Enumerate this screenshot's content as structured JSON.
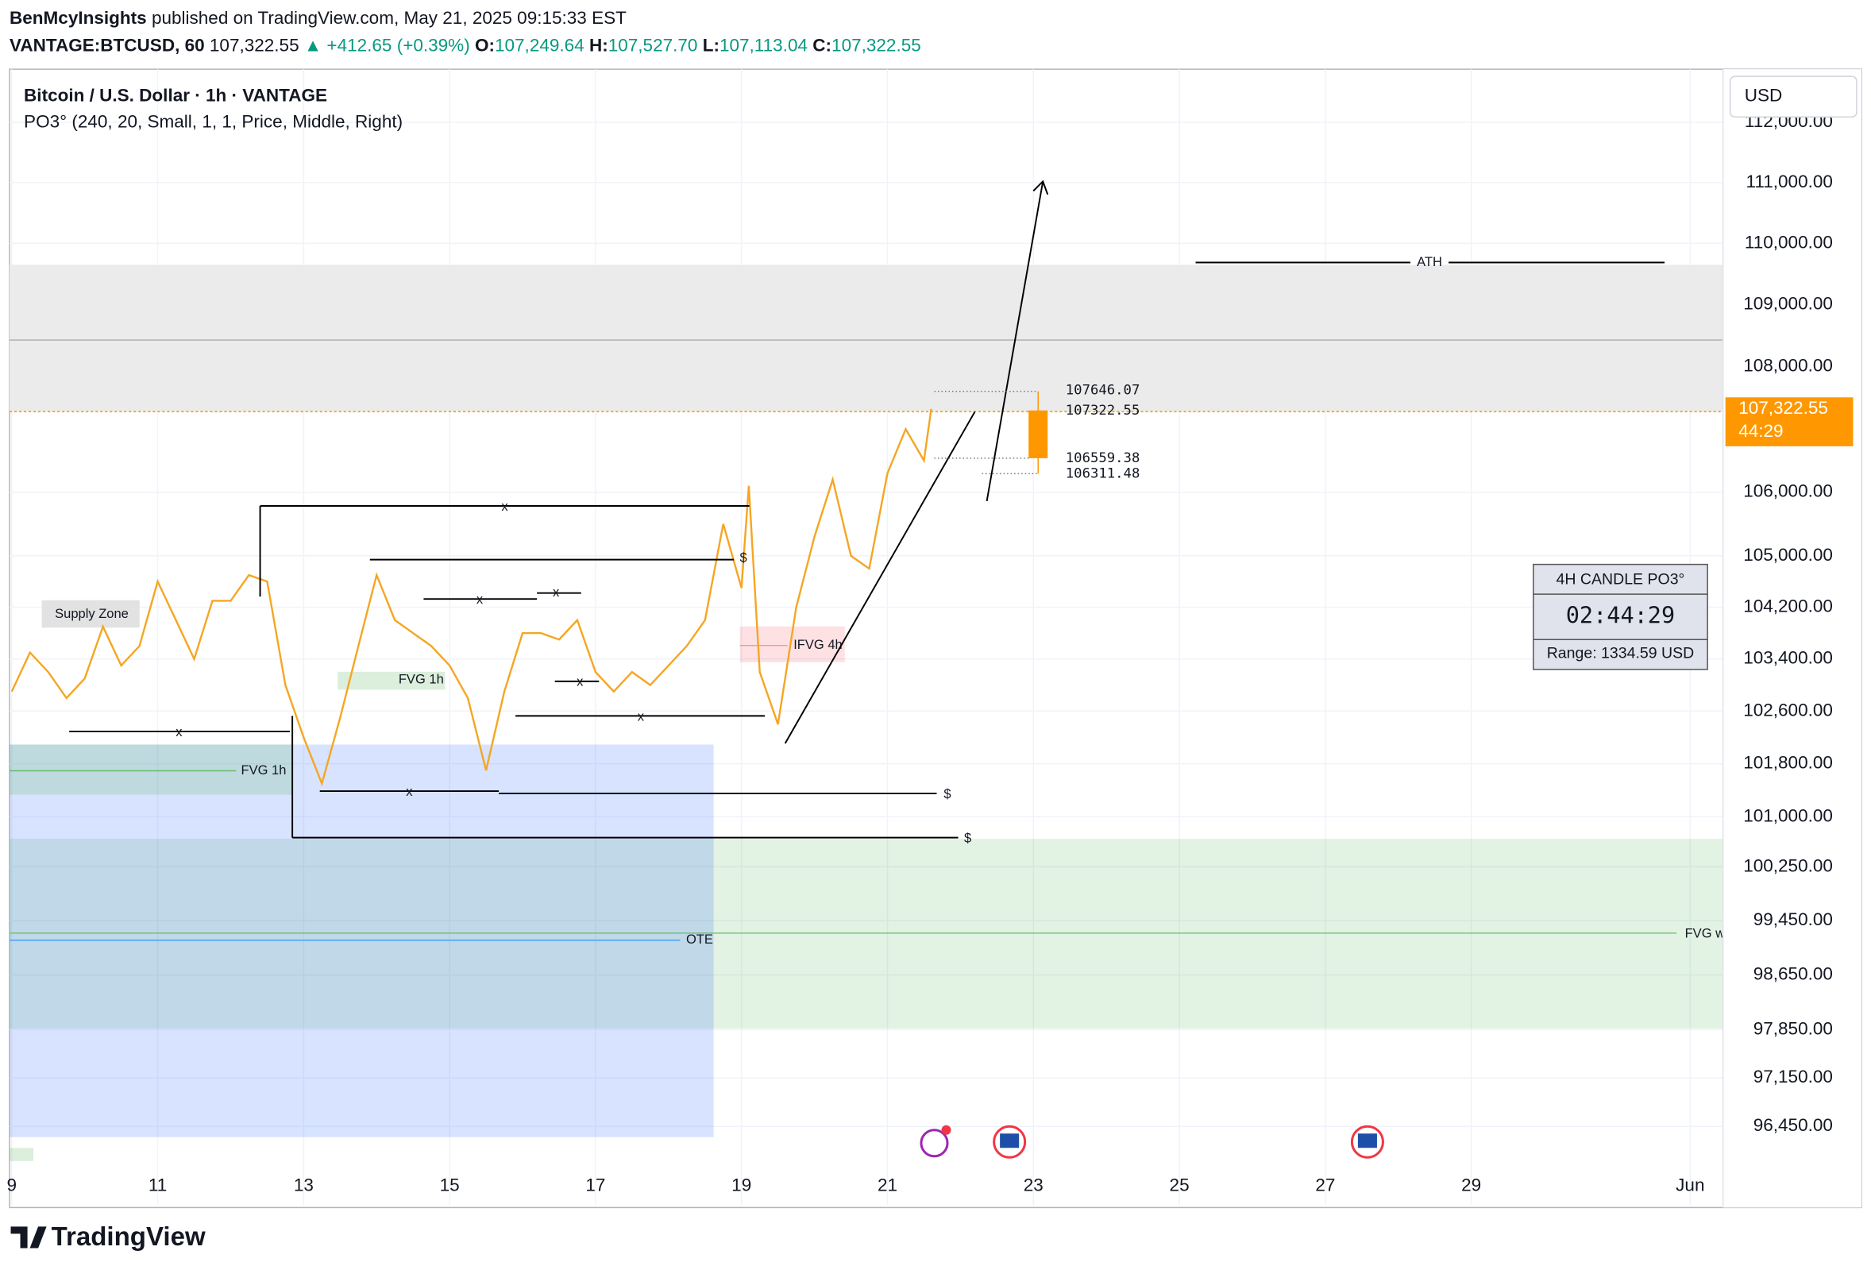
{
  "header": {
    "publisher": "BenMcyInsights",
    "published": "published on TradingView.com, May 21, 2025 09:15:33 EST",
    "symbol": "VANTAGE:BTCUSD, 60",
    "last": "107,322.55",
    "change": "▲ +412.65 (+0.39%)",
    "o_label": "O:",
    "o": "107,249.64",
    "h_label": "H:",
    "h": "107,527.70",
    "l_label": "L:",
    "l": "107,113.04",
    "c_label": "C:",
    "c": "107,322.55"
  },
  "chart_data": {
    "type": "line",
    "title": "Bitcoin / U.S. Dollar · 1h · VANTAGE",
    "subtitle": "PO3° (240, 20, Small, 1, 1, Price, Middle, Right)",
    "color": "#f5a623",
    "x": [
      9,
      9.25,
      9.5,
      9.75,
      10,
      10.25,
      10.5,
      10.75,
      11,
      11.25,
      11.5,
      11.75,
      12,
      12.25,
      12.5,
      12.75,
      13,
      13.25,
      13.5,
      13.75,
      14,
      14.25,
      14.5,
      14.75,
      15,
      15.25,
      15.5,
      15.75,
      16,
      16.25,
      16.5,
      16.75,
      17,
      17.25,
      17.5,
      17.75,
      18,
      18.25,
      18.5,
      18.75,
      19,
      19.1,
      19.25,
      19.5,
      19.75,
      20,
      20.25,
      20.5,
      20.75,
      21,
      21.25,
      21.5,
      21.6
    ],
    "values": [
      102900,
      103500,
      103200,
      102800,
      103100,
      103900,
      103300,
      103600,
      104600,
      104000,
      103400,
      104300,
      104300,
      104700,
      104600,
      103000,
      102200,
      101500,
      102500,
      103600,
      104700,
      104000,
      103800,
      103600,
      103300,
      102800,
      101700,
      102900,
      103800,
      103800,
      103700,
      104000,
      103200,
      102900,
      103200,
      103000,
      103300,
      103600,
      104000,
      105500,
      104500,
      106100,
      103200,
      102400,
      104200,
      105300,
      106200,
      105000,
      104800,
      106300,
      107000,
      106500,
      107322.55
    ],
    "log_scale": true,
    "grid": true,
    "xlim": [
      8.97,
      32.45
    ],
    "ylim": [
      95326,
      112849
    ],
    "xticks": [
      9,
      11,
      13,
      15,
      17,
      19,
      21,
      23,
      25,
      27,
      29,
      {
        "value": 32,
        "label": "Jun"
      }
    ],
    "yticks": [
      {
        "value": 112000,
        "label": "112,000.00"
      },
      {
        "value": 111000,
        "label": "111,000.00"
      },
      {
        "value": 110000,
        "label": "110,000.00"
      },
      {
        "value": 109000,
        "label": "109,000.00"
      },
      {
        "value": 108000,
        "label": "108,000.00"
      },
      {
        "value": 106000,
        "label": "106,000.00"
      },
      {
        "value": 105000,
        "label": "105,000.00"
      },
      {
        "value": 104200,
        "label": "104,200.00"
      },
      {
        "value": 103400,
        "label": "103,400.00"
      },
      {
        "value": 102600,
        "label": "102,600.00"
      },
      {
        "value": 101800,
        "label": "101,800.00"
      },
      {
        "value": 101000,
        "label": "101,000.00"
      },
      {
        "value": 100250,
        "label": "100,250.00"
      },
      {
        "value": 99450,
        "label": "99,450.00"
      },
      {
        "value": 98650,
        "label": "98,650.00"
      },
      {
        "value": 97850,
        "label": "97,850.00"
      },
      {
        "value": 97150,
        "label": "97,150.00"
      },
      {
        "value": 96450,
        "label": "96,450.00"
      }
    ]
  },
  "currency": "USD",
  "price_label": {
    "price": "107,322.55",
    "countdown": "44:29"
  },
  "annotations": {
    "supply_zone": "Supply Zone",
    "fvg_1h_a": "FVG 1h",
    "fvg_1h_b": "FVG 1h",
    "ifvg": "IFVG 4h",
    "ote": "OTE",
    "fvg_w": "FVG w",
    "ath": "ATH",
    "x_marks": [
      "x",
      "x",
      "x",
      "x",
      "x",
      "x",
      "x"
    ],
    "dollar_marks": [
      "$",
      "$",
      "$"
    ]
  },
  "po3_levels": [
    "107646.07",
    "107322.55",
    "106559.38",
    "106311.48"
  ],
  "po3_panel": {
    "title": "4H CANDLE PO3°",
    "timer": "02:44:29",
    "range": "Range: 1334.59 USD"
  },
  "footer": "TradingView"
}
